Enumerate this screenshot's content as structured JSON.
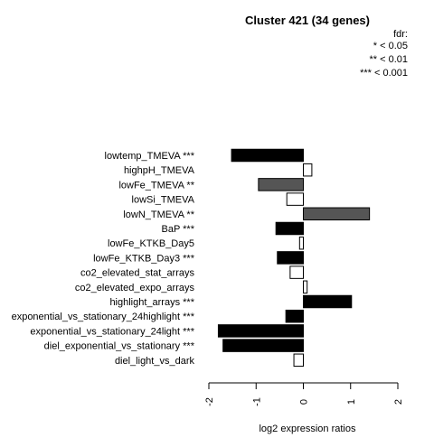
{
  "chart_data": {
    "type": "bar",
    "orientation": "horizontal",
    "title": "Cluster 421 (34 genes)",
    "xlabel": "log2 expression ratios",
    "xlim": [
      -2,
      2
    ],
    "xticks": [
      "-2",
      "-1",
      "0",
      "1",
      "2"
    ],
    "legend": {
      "title": "fdr:",
      "entries": [
        "* < 0.05",
        "** < 0.01",
        "*** < 0.001"
      ],
      "placement": "top-right"
    },
    "bars": [
      {
        "label": "lowtemp_TMEVA ***",
        "value": -1.52,
        "color": "#000000"
      },
      {
        "label": "highpH_TMEVA",
        "value": 0.18,
        "color": "#ffffff"
      },
      {
        "label": "lowFe_TMEVA **",
        "value": -0.95,
        "color": "#555555"
      },
      {
        "label": "lowSi_TMEVA",
        "value": -0.35,
        "color": "#ffffff"
      },
      {
        "label": "lowN_TMEVA **",
        "value": 1.4,
        "color": "#555555"
      },
      {
        "label": "BaP ***",
        "value": -0.58,
        "color": "#000000"
      },
      {
        "label": "lowFe_KTKB_Day5",
        "value": -0.08,
        "color": "#ffffff"
      },
      {
        "label": "lowFe_KTKB_Day3 ***",
        "value": -0.55,
        "color": "#000000"
      },
      {
        "label": "co2_elevated_stat_arrays",
        "value": -0.28,
        "color": "#ffffff"
      },
      {
        "label": "co2_elevated_expo_arrays",
        "value": 0.08,
        "color": "#ffffff"
      },
      {
        "label": "highlight_arrays ***",
        "value": 1.02,
        "color": "#000000"
      },
      {
        "label": "exponential_vs_stationary_24highlight ***",
        "value": -0.37,
        "color": "#000000"
      },
      {
        "label": "exponential_vs_stationary_24light ***",
        "value": -1.8,
        "color": "#000000"
      },
      {
        "label": "diel_exponential_vs_stationary ***",
        "value": -1.7,
        "color": "#000000"
      },
      {
        "label": "diel_light_vs_dark",
        "value": -0.2,
        "color": "#ffffff"
      }
    ]
  }
}
